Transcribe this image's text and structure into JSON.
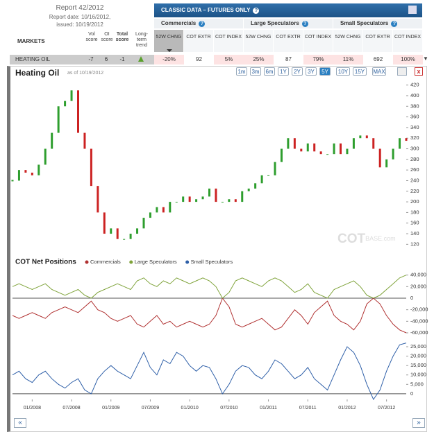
{
  "header": {
    "report": "Report 42/2012",
    "report_date": "Report date: 10/16/2012,",
    "issued": "issued: 10/19/2012"
  },
  "columns": {
    "markets": "MARKETS",
    "vol": "Vol score",
    "oi": "OI score",
    "total": "Total score",
    "trend": "Long-term trend"
  },
  "classic": {
    "title": "CLASSIC DATA – FUTURES ONLY",
    "groups": [
      "Commercials",
      "Large Speculators",
      "Small Speculators"
    ],
    "subheaders": [
      "52W CHNG",
      "COT EXTR",
      "COT INDEX"
    ]
  },
  "row": {
    "market": "HEATING OIL",
    "scores": [
      -7,
      6,
      -1
    ],
    "cells": [
      "-20%",
      "92",
      "5%",
      "25%",
      "87",
      "79%",
      "11%",
      "692",
      "100%"
    ]
  },
  "panel": {
    "title": "Heating Oil",
    "as_of": "as of 10/19/2012",
    "ranges": [
      "1m",
      "3m",
      "6m",
      "1Y",
      "2Y",
      "3Y",
      "5Y",
      "10Y",
      "15Y",
      "MAX"
    ],
    "watermark": [
      "COT",
      "BASE.com"
    ],
    "section": "COT Net Positions"
  },
  "chart_data": [
    {
      "type": "candlestick",
      "color_up": "#2e9e2e",
      "color_down": "#cc2222",
      "values": [
        240,
        260,
        255,
        250,
        270,
        300,
        330,
        380,
        390,
        410,
        330,
        300,
        230,
        180,
        140,
        150,
        130,
        130,
        140,
        150,
        170,
        180,
        190,
        180,
        200,
        200,
        210,
        200,
        205,
        210,
        225,
        200,
        200,
        205,
        200,
        220,
        225,
        235,
        250,
        250,
        275,
        300,
        320,
        300,
        295,
        310,
        295,
        290,
        290,
        310,
        290,
        300,
        320,
        325,
        320,
        300,
        265,
        280,
        300,
        320,
        315
      ],
      "ylim": [
        110,
        430
      ],
      "yticks": [
        120,
        140,
        160,
        180,
        200,
        220,
        240,
        260,
        280,
        300,
        320,
        340,
        360,
        380,
        400,
        420
      ]
    },
    {
      "type": "line",
      "series": [
        {
          "name": "Commercials",
          "color": "#b03030",
          "values": [
            -30000,
            -35000,
            -30000,
            -25000,
            -30000,
            -35000,
            -25000,
            -20000,
            -15000,
            -20000,
            -25000,
            -15000,
            -5000,
            -20000,
            -25000,
            -35000,
            -40000,
            -35000,
            -30000,
            -45000,
            -50000,
            -40000,
            -30000,
            -45000,
            -40000,
            -50000,
            -45000,
            -40000,
            -45000,
            -50000,
            -45000,
            -30000,
            0,
            -15000,
            -45000,
            -50000,
            -45000,
            -40000,
            -35000,
            -45000,
            -55000,
            -50000,
            -35000,
            -20000,
            -30000,
            -45000,
            -25000,
            -15000,
            -5000,
            -30000,
            -40000,
            -45000,
            -55000,
            -40000,
            -10000,
            0,
            -10000,
            -30000,
            -45000,
            -55000,
            -60000
          ]
        },
        {
          "name": "Large Speculators",
          "color": "#7fa33a",
          "values": [
            20000,
            25000,
            20000,
            15000,
            20000,
            25000,
            15000,
            10000,
            5000,
            10000,
            15000,
            5000,
            0,
            10000,
            15000,
            20000,
            25000,
            20000,
            15000,
            30000,
            35000,
            25000,
            20000,
            30000,
            25000,
            35000,
            30000,
            25000,
            30000,
            35000,
            30000,
            20000,
            0,
            10000,
            30000,
            35000,
            30000,
            25000,
            20000,
            30000,
            35000,
            30000,
            20000,
            10000,
            15000,
            25000,
            10000,
            5000,
            0,
            15000,
            20000,
            25000,
            30000,
            20000,
            5000,
            0,
            5000,
            15000,
            25000,
            35000,
            40000
          ]
        }
      ],
      "ylim": [
        -66000,
        48000
      ],
      "yticks": [
        {
          "value": 40000,
          "label": "40,000"
        },
        {
          "value": 20000,
          "label": "20,000"
        },
        0,
        {
          "value": -20000,
          "label": "-20,000"
        },
        {
          "value": -40000,
          "label": "-40,000"
        },
        {
          "value": -60000,
          "label": "-60,000"
        }
      ]
    },
    {
      "type": "line",
      "categories": [
        null,
        null,
        null,
        "01/2008",
        null,
        null,
        null,
        null,
        null,
        "07/2008",
        null,
        null,
        null,
        null,
        null,
        "01/2009",
        null,
        null,
        null,
        null,
        null,
        "07/2009",
        null,
        null,
        null,
        null,
        null,
        "01/2010",
        null,
        null,
        null,
        null,
        null,
        "07/2010",
        null,
        null,
        null,
        null,
        null,
        "01/2011",
        null,
        null,
        null,
        null,
        null,
        "07/2011",
        null,
        null,
        null,
        null,
        null,
        "01/2012",
        null,
        null,
        null,
        null,
        null,
        "07/2012",
        null,
        null,
        null
      ],
      "series": [
        {
          "name": "Small Speculators",
          "color": "#2e5fa8",
          "values": [
            10000,
            12000,
            8000,
            6000,
            10000,
            12000,
            8000,
            5000,
            3000,
            6000,
            8000,
            2000,
            0,
            8000,
            12000,
            15000,
            12000,
            10000,
            8000,
            15000,
            22000,
            14000,
            10000,
            18000,
            16000,
            22000,
            20000,
            15000,
            12000,
            15000,
            14000,
            8000,
            0,
            5000,
            12000,
            15000,
            14000,
            10000,
            8000,
            12000,
            18000,
            16000,
            12000,
            8000,
            10000,
            14000,
            8000,
            5000,
            2000,
            10000,
            18000,
            25000,
            22000,
            15000,
            5000,
            -3000,
            2000,
            12000,
            20000,
            26000,
            27000
          ]
        }
      ],
      "ylim": [
        -3000,
        28700
      ],
      "yticks": [
        {
          "value": 25000,
          "label": "25,000"
        },
        {
          "value": 20000,
          "label": "20,000"
        },
        {
          "value": 15000,
          "label": "15,000"
        },
        {
          "value": 10000,
          "label": "10,000"
        },
        {
          "value": 5000,
          "label": "5,000"
        },
        0
      ]
    }
  ]
}
